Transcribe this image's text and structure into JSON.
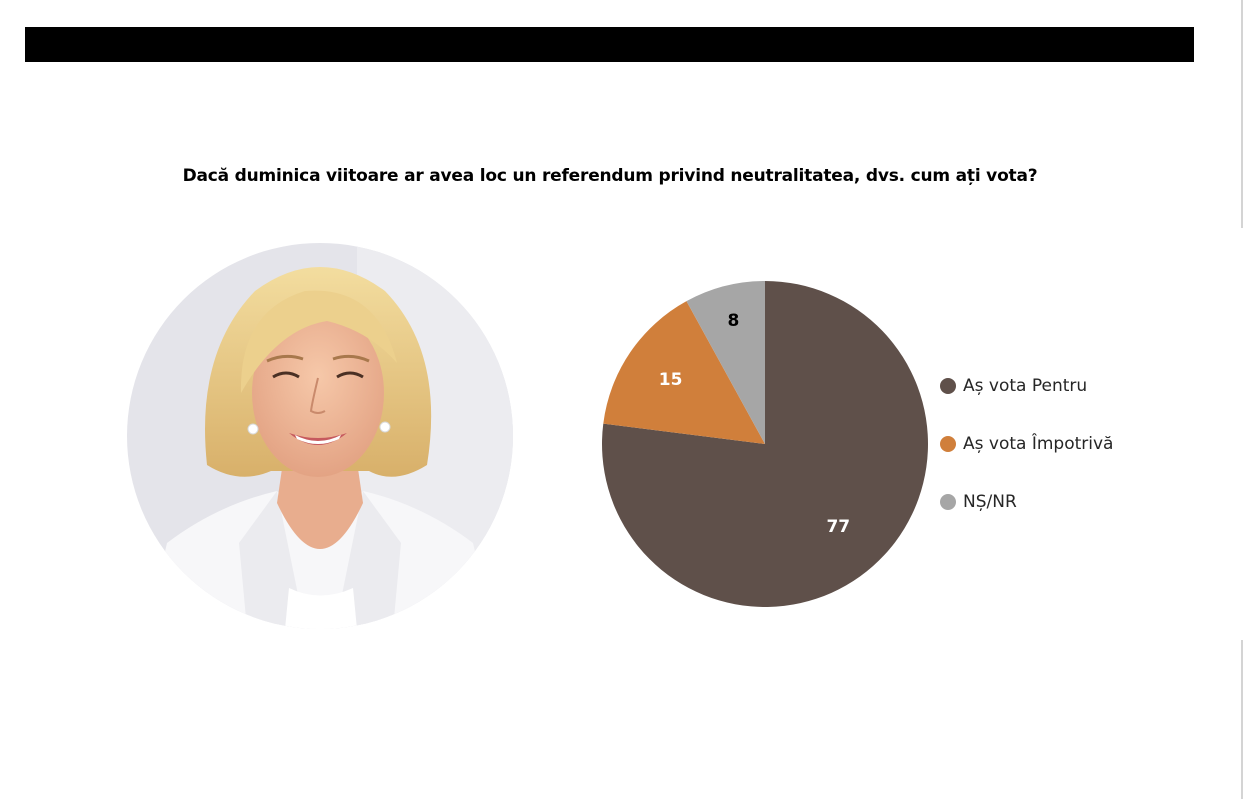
{
  "chart_data": {
    "type": "pie",
    "title": "Dacă duminica viitoare ar avea loc un referendum privind neutralitatea, dvs. cum ați vota?",
    "categories": [
      "Aș vota Pentru",
      "Aș vota Împotrivă",
      "NȘ/NR"
    ],
    "values": [
      77,
      15,
      8
    ],
    "colors": [
      "#5f504a",
      "#d07f3b",
      "#a6a6a6"
    ],
    "label_colors": [
      "#ffffff",
      "#ffffff",
      "#000000"
    ],
    "legend_position": "right"
  },
  "photo": {
    "icon": "portrait-photo"
  }
}
